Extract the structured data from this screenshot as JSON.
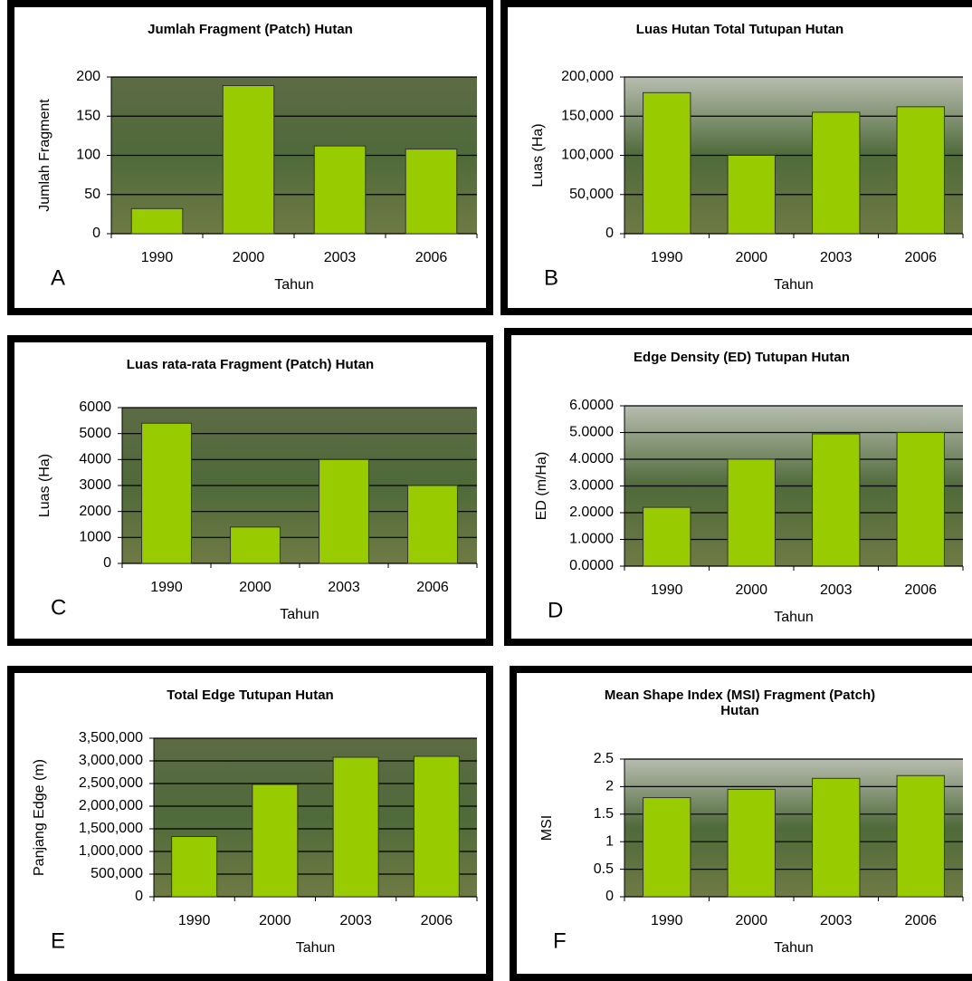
{
  "chart_data": [
    {
      "type": "bar",
      "panel": "A",
      "title": "Jumlah Fragment (Patch) Hutan",
      "ylabel": "Jumlah Fragment",
      "xlabel": "Tahun",
      "categories": [
        "1990",
        "2000",
        "2003",
        "2006"
      ],
      "values": [
        32,
        189,
        112,
        108
      ],
      "color": "#99cc00",
      "ylim": [
        0,
        200
      ],
      "yticks": [
        0,
        50,
        100,
        150,
        200
      ],
      "grid": true
    },
    {
      "type": "bar",
      "panel": "B",
      "title": "Luas Hutan Total Tutupan Hutan",
      "ylabel": "Luas (Ha)",
      "xlabel": "Tahun",
      "categories": [
        "1990",
        "2000",
        "2003",
        "2006"
      ],
      "values": [
        180000,
        100000,
        155000,
        162000
      ],
      "color": "#99cc00",
      "ylim": [
        0,
        200000
      ],
      "yticks": [
        0,
        {
          "value": 50000,
          "label": "50,000"
        },
        {
          "value": 100000,
          "label": "100,000"
        },
        {
          "value": 150000,
          "label": "150,000"
        },
        {
          "value": 200000,
          "label": "200,000"
        }
      ],
      "grid": true
    },
    {
      "type": "bar",
      "panel": "C",
      "title": "Luas rata-rata Fragment (Patch) Hutan",
      "ylabel": "Luas (Ha)",
      "xlabel": "Tahun",
      "categories": [
        "1990",
        "2000",
        "2003",
        "2006"
      ],
      "values": [
        5400,
        1400,
        4000,
        3000
      ],
      "color": "#99cc00",
      "ylim": [
        0,
        6000
      ],
      "yticks": [
        0,
        1000,
        2000,
        3000,
        4000,
        5000,
        6000
      ],
      "grid": true
    },
    {
      "type": "bar",
      "panel": "D",
      "title": "Edge Density (ED) Tutupan Hutan",
      "ylabel": "ED (m/Ha)",
      "xlabel": "Tahun",
      "categories": [
        "1990",
        "2000",
        "2003",
        "2006"
      ],
      "values": [
        2.2,
        4.0,
        4.95,
        5.0
      ],
      "color": "#99cc00",
      "ylim": [
        0,
        6
      ],
      "yticks": [
        {
          "value": 0,
          "label": "0.0000"
        },
        {
          "value": 1,
          "label": "1.0000"
        },
        {
          "value": 2,
          "label": "2.0000"
        },
        {
          "value": 3,
          "label": "3.0000"
        },
        {
          "value": 4,
          "label": "4.0000"
        },
        {
          "value": 5,
          "label": "5.0000"
        },
        {
          "value": 6,
          "label": "6.0000"
        }
      ],
      "grid": true
    },
    {
      "type": "bar",
      "panel": "E",
      "title": "Total Edge Tutupan Hutan",
      "ylabel": "Panjang Edge (m)",
      "xlabel": "Tahun",
      "categories": [
        "1990",
        "2000",
        "2003",
        "2006"
      ],
      "values": [
        1330000,
        2480000,
        3080000,
        3100000
      ],
      "color": "#99cc00",
      "ylim": [
        0,
        3500000
      ],
      "yticks": [
        0,
        {
          "value": 500000,
          "label": "500,000"
        },
        {
          "value": 1000000,
          "label": "1,000,000"
        },
        {
          "value": 1500000,
          "label": "1,500,000"
        },
        {
          "value": 2000000,
          "label": "2,000,000"
        },
        {
          "value": 2500000,
          "label": "2,500,000"
        },
        {
          "value": 3000000,
          "label": "3,000,000"
        },
        {
          "value": 3500000,
          "label": "3,500,000"
        }
      ],
      "grid": true
    },
    {
      "type": "bar",
      "panel": "F",
      "title": "Mean Shape Index (MSI) Fragment (Patch) Hutan",
      "ylabel": "MSI",
      "xlabel": "Tahun",
      "categories": [
        "1990",
        "2000",
        "2003",
        "2006"
      ],
      "values": [
        1.8,
        1.95,
        2.15,
        2.2
      ],
      "color": "#99cc00",
      "ylim": [
        0,
        2.5
      ],
      "yticks": [
        0,
        0.5,
        1,
        1.5,
        2,
        2.5
      ],
      "grid": true
    }
  ]
}
